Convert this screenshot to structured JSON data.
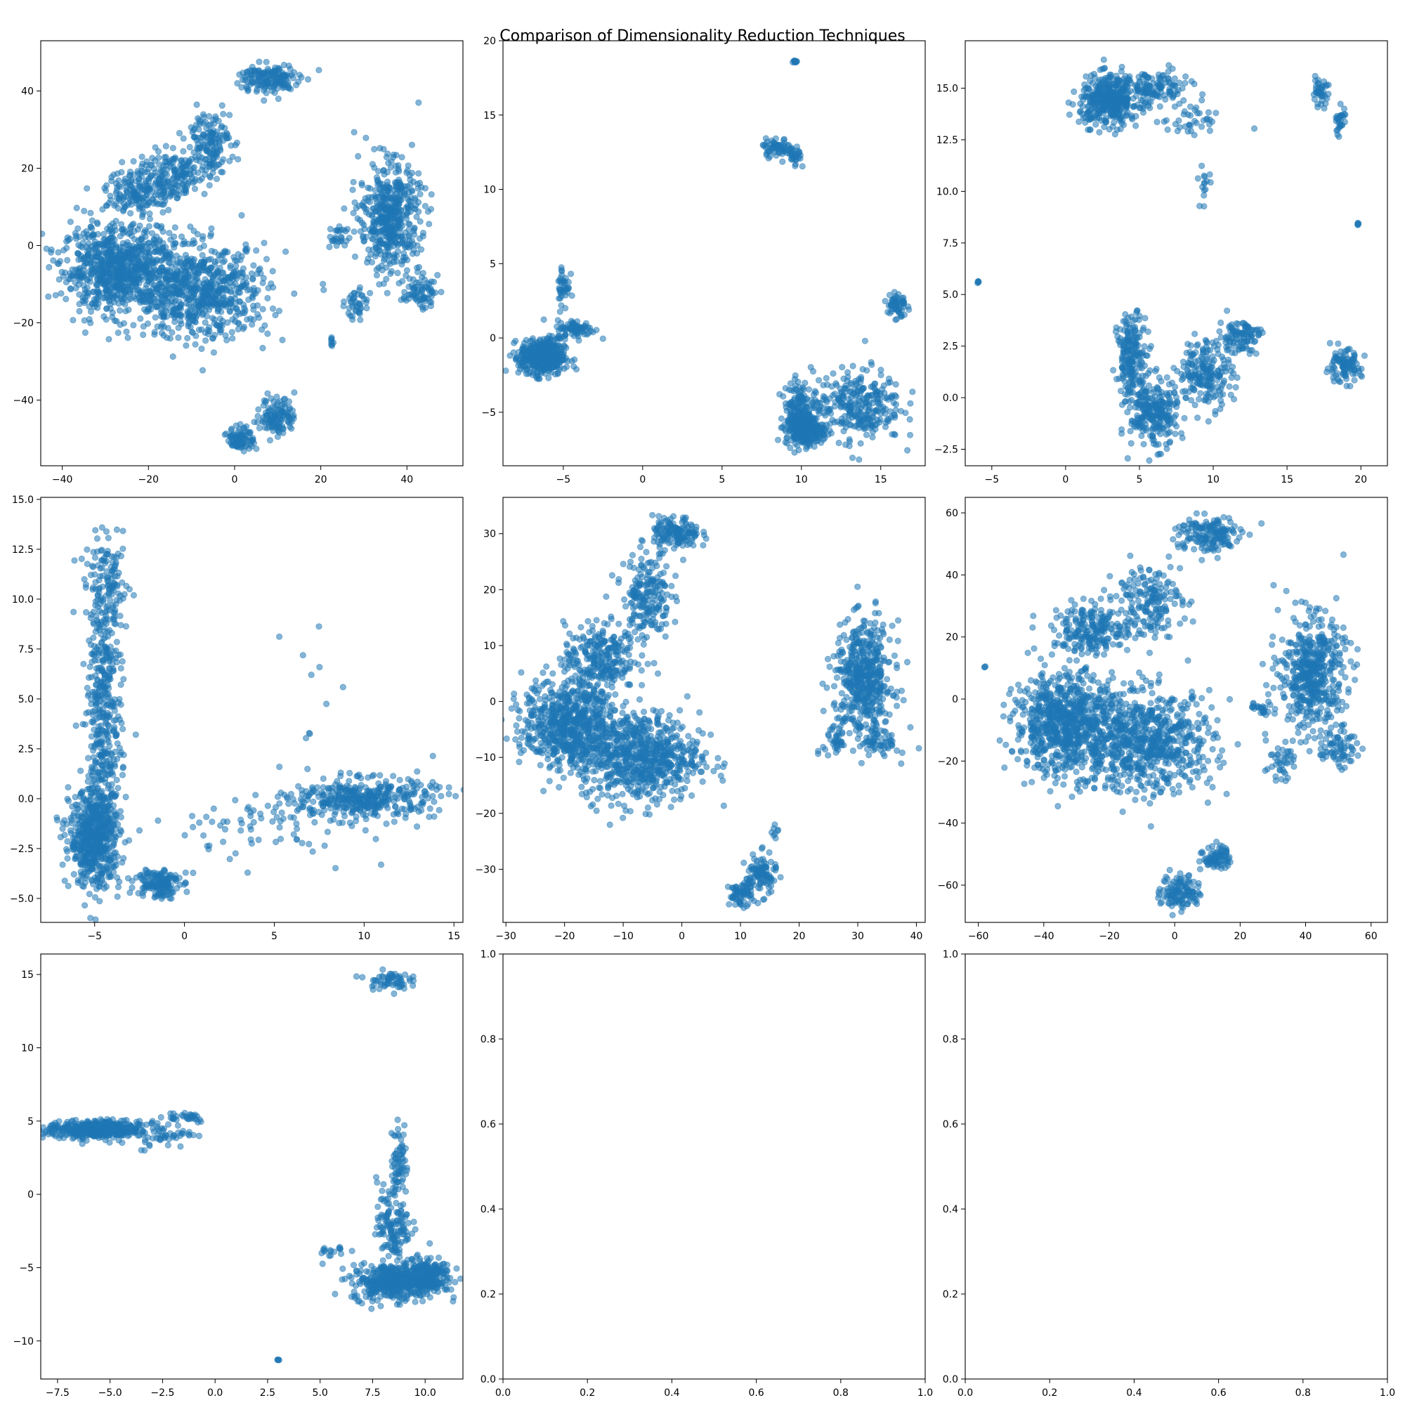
{
  "figure": {
    "suptitle": "Comparison of Dimensionality Reduction Techniques",
    "point_color": "#1f77b4",
    "point_alpha": 0.55
  },
  "chart_data": [
    {
      "type": "scatter",
      "title": "",
      "xlim": [
        -45,
        53
      ],
      "ylim": [
        -57,
        53
      ],
      "xticks": [
        -40,
        -20,
        0,
        20,
        40
      ],
      "yticks": [
        -40,
        -20,
        0,
        20,
        40
      ],
      "xticklabels": [
        "−40",
        "−20",
        "0",
        "20",
        "40"
      ],
      "yticklabels": [
        "−40",
        "−20",
        "0",
        "20",
        "40"
      ],
      "clusters": [
        {
          "cx": -27,
          "cy": -6,
          "sx": 6.5,
          "sy": 5.5,
          "n": 800
        },
        {
          "cx": -8,
          "cy": -12,
          "sx": 8,
          "sy": 6,
          "n": 700
        },
        {
          "cx": -22,
          "cy": 14,
          "sx": 4,
          "sy": 3,
          "n": 160
        },
        {
          "cx": -14,
          "cy": 18,
          "sx": 4,
          "sy": 3,
          "n": 160
        },
        {
          "cx": -6,
          "cy": 27,
          "sx": 2.5,
          "sy": 4,
          "n": 150
        },
        {
          "cx": 8,
          "cy": 43,
          "sx": 3.5,
          "sy": 2,
          "n": 160
        },
        {
          "cx": 36,
          "cy": 7,
          "sx": 3.5,
          "sy": 7,
          "n": 500
        },
        {
          "cx": 43,
          "cy": -12,
          "sx": 2,
          "sy": 2,
          "n": 70
        },
        {
          "cx": 28,
          "cy": -15,
          "sx": 1.2,
          "sy": 2,
          "n": 40
        },
        {
          "cx": 24,
          "cy": 2,
          "sx": 1,
          "sy": 2,
          "n": 25
        },
        {
          "cx": 10,
          "cy": -44,
          "sx": 2,
          "sy": 2.5,
          "n": 120
        },
        {
          "cx": 1.5,
          "cy": -50,
          "sx": 1.5,
          "sy": 1.5,
          "n": 90
        },
        {
          "cx": 22.5,
          "cy": -25,
          "sx": 0.3,
          "sy": 0.6,
          "n": 8
        }
      ]
    },
    {
      "type": "scatter",
      "title": "",
      "xlim": [
        -8.8,
        17.8
      ],
      "ylim": [
        -8.6,
        20
      ],
      "xticks": [
        -5,
        0,
        5,
        10,
        15
      ],
      "yticks": [
        -5,
        0,
        5,
        10,
        15,
        20
      ],
      "xticklabels": [
        "−5",
        "0",
        "5",
        "10",
        "15"
      ],
      "yticklabels": [
        "−5",
        "0",
        "5",
        "10",
        "15",
        "20"
      ],
      "clusters": [
        {
          "cx": -6.3,
          "cy": -1.3,
          "sx": 0.7,
          "sy": 0.6,
          "n": 500
        },
        {
          "cx": -4.2,
          "cy": 0.6,
          "sx": 0.6,
          "sy": 0.3,
          "n": 80
        },
        {
          "cx": -5,
          "cy": 3.5,
          "sx": 0.2,
          "sy": 0.8,
          "n": 40
        },
        {
          "cx": 10.2,
          "cy": -6.2,
          "sx": 0.6,
          "sy": 0.5,
          "n": 300
        },
        {
          "cx": 13.5,
          "cy": -4.5,
          "sx": 1.4,
          "sy": 1.2,
          "n": 300
        },
        {
          "cx": 9.8,
          "cy": -4.5,
          "sx": 0.4,
          "sy": 0.8,
          "n": 120
        },
        {
          "cx": 16,
          "cy": 2.2,
          "sx": 0.3,
          "sy": 0.5,
          "n": 60
        },
        {
          "cx": 8.5,
          "cy": 12.8,
          "sx": 0.5,
          "sy": 0.3,
          "n": 60
        },
        {
          "cx": 9.6,
          "cy": 12.1,
          "sx": 0.2,
          "sy": 0.4,
          "n": 30
        },
        {
          "cx": 9.6,
          "cy": 18.6,
          "sx": 0.05,
          "sy": 0.05,
          "n": 10
        }
      ]
    },
    {
      "type": "scatter",
      "title": "",
      "xlim": [
        -6.8,
        21.8
      ],
      "ylim": [
        -3.3,
        17.3
      ],
      "xticks": [
        -5,
        0,
        5,
        10,
        15,
        20
      ],
      "yticks": [
        -2.5,
        0.0,
        2.5,
        5.0,
        7.5,
        10.0,
        12.5,
        15.0
      ],
      "xticklabels": [
        "−5",
        "0",
        "5",
        "10",
        "15",
        "20"
      ],
      "yticklabels": [
        "−2.5",
        "0.0",
        "2.5",
        "5.0",
        "7.5",
        "10.0",
        "12.5",
        "15.0"
      ],
      "clusters": [
        {
          "cx": 3,
          "cy": 14.4,
          "sx": 1,
          "sy": 0.6,
          "n": 400
        },
        {
          "cx": 6,
          "cy": 15,
          "sx": 1.2,
          "sy": 0.4,
          "n": 120
        },
        {
          "cx": 8.5,
          "cy": 13.5,
          "sx": 1,
          "sy": 0.5,
          "n": 40
        },
        {
          "cx": 6,
          "cy": -0.8,
          "sx": 0.8,
          "sy": 0.8,
          "n": 250
        },
        {
          "cx": 4.5,
          "cy": 2,
          "sx": 0.5,
          "sy": 1,
          "n": 200
        },
        {
          "cx": 9.5,
          "cy": 1.2,
          "sx": 0.9,
          "sy": 0.8,
          "n": 200
        },
        {
          "cx": 11.8,
          "cy": 3,
          "sx": 0.7,
          "sy": 0.4,
          "n": 100
        },
        {
          "cx": 18.8,
          "cy": 1.5,
          "sx": 0.6,
          "sy": 0.4,
          "n": 100
        },
        {
          "cx": 17.2,
          "cy": 14.8,
          "sx": 0.3,
          "sy": 0.3,
          "n": 40
        },
        {
          "cx": 18.6,
          "cy": 13.4,
          "sx": 0.2,
          "sy": 0.4,
          "n": 30
        },
        {
          "cx": 9.4,
          "cy": 10.5,
          "sx": 0.2,
          "sy": 0.5,
          "n": 15
        },
        {
          "cx": 19.8,
          "cy": 8.4,
          "sx": 0.03,
          "sy": 0.03,
          "n": 5
        },
        {
          "cx": -5.9,
          "cy": 5.6,
          "sx": 0.03,
          "sy": 0.03,
          "n": 5
        }
      ]
    },
    {
      "type": "scatter",
      "title": "",
      "xlim": [
        -8,
        15.5
      ],
      "ylim": [
        -6.2,
        15.1
      ],
      "xticks": [
        -5,
        0,
        5,
        10,
        15
      ],
      "yticks": [
        -5.0,
        -2.5,
        0.0,
        2.5,
        5.0,
        7.5,
        10.0,
        12.5,
        15.0
      ],
      "xticklabels": [
        "−5",
        "0",
        "5",
        "10",
        "15"
      ],
      "yticklabels": [
        "−5.0",
        "−2.5",
        "0.0",
        "2.5",
        "5.0",
        "7.5",
        "10.0",
        "12.5",
        "15.0"
      ],
      "clusters": [
        {
          "cx": -5,
          "cy": -2,
          "sx": 0.7,
          "sy": 1.2,
          "n": 600
        },
        {
          "cx": -4.5,
          "cy": 3,
          "sx": 0.5,
          "sy": 2.5,
          "n": 300
        },
        {
          "cx": -4.3,
          "cy": 10.5,
          "sx": 0.6,
          "sy": 1.2,
          "n": 150
        },
        {
          "cx": -4.5,
          "cy": 7,
          "sx": 0.5,
          "sy": 1,
          "n": 80
        },
        {
          "cx": -1.5,
          "cy": -4.2,
          "sx": 0.6,
          "sy": 0.4,
          "n": 150
        },
        {
          "cx": 10,
          "cy": 0,
          "sx": 2,
          "sy": 0.5,
          "n": 400
        },
        {
          "cx": 4,
          "cy": -1.5,
          "sx": 3,
          "sy": 0.8,
          "n": 70
        },
        {
          "cx": 7,
          "cy": 6,
          "sx": 0.7,
          "sy": 2,
          "n": 10
        }
      ]
    },
    {
      "type": "scatter",
      "title": "",
      "xlim": [
        -30.5,
        41.5
      ],
      "ylim": [
        -39.5,
        36.5
      ],
      "xticks": [
        -30,
        -20,
        -10,
        0,
        10,
        20,
        30,
        40
      ],
      "yticks": [
        -30,
        -20,
        -10,
        0,
        10,
        20,
        30
      ],
      "xticklabels": [
        "−30",
        "−20",
        "−10",
        "0",
        "10",
        "20",
        "30",
        "40"
      ],
      "yticklabels": [
        "−30",
        "−20",
        "−10",
        "0",
        "10",
        "20",
        "30"
      ],
      "clusters": [
        {
          "cx": -19,
          "cy": -4,
          "sx": 4,
          "sy": 4,
          "n": 700
        },
        {
          "cx": -7,
          "cy": -10,
          "sx": 5,
          "sy": 4,
          "n": 700
        },
        {
          "cx": -14,
          "cy": 8,
          "sx": 3,
          "sy": 3,
          "n": 250
        },
        {
          "cx": -6,
          "cy": 19,
          "sx": 2,
          "sy": 4,
          "n": 200
        },
        {
          "cx": -1,
          "cy": 30,
          "sx": 2,
          "sy": 1.5,
          "n": 150
        },
        {
          "cx": 31,
          "cy": 4,
          "sx": 2.5,
          "sy": 5,
          "n": 500
        },
        {
          "cx": 34,
          "cy": -7,
          "sx": 1.5,
          "sy": 1.5,
          "n": 60
        },
        {
          "cx": 26,
          "cy": -7,
          "sx": 1,
          "sy": 2,
          "n": 35
        },
        {
          "cx": 13.5,
          "cy": -31,
          "sx": 1.3,
          "sy": 1.8,
          "n": 100
        },
        {
          "cx": 10,
          "cy": -34.5,
          "sx": 1,
          "sy": 1,
          "n": 70
        },
        {
          "cx": 16,
          "cy": -23.5,
          "sx": 0.3,
          "sy": 0.6,
          "n": 8
        }
      ]
    },
    {
      "type": "scatter",
      "title": "",
      "xlim": [
        -64,
        65
      ],
      "ylim": [
        -72,
        65
      ],
      "xticks": [
        -60,
        -40,
        -20,
        0,
        20,
        40,
        60
      ],
      "yticks": [
        -60,
        -40,
        -20,
        0,
        20,
        40,
        60
      ],
      "xticklabels": [
        "−60",
        "−40",
        "−20",
        "0",
        "20",
        "40",
        "60"
      ],
      "yticklabels": [
        "−60",
        "−40",
        "−20",
        "0",
        "20",
        "40",
        "60"
      ],
      "clusters": [
        {
          "cx": -33,
          "cy": -8,
          "sx": 8,
          "sy": 8,
          "n": 800
        },
        {
          "cx": -8,
          "cy": -14,
          "sx": 10,
          "sy": 8,
          "n": 700
        },
        {
          "cx": -25,
          "cy": 22,
          "sx": 6,
          "sy": 4,
          "n": 220
        },
        {
          "cx": -8,
          "cy": 32,
          "sx": 5,
          "sy": 6,
          "n": 180
        },
        {
          "cx": 10,
          "cy": 53,
          "sx": 5,
          "sy": 3,
          "n": 160
        },
        {
          "cx": 42,
          "cy": 8,
          "sx": 5,
          "sy": 9,
          "n": 500
        },
        {
          "cx": 50,
          "cy": -16,
          "sx": 3,
          "sy": 3,
          "n": 70
        },
        {
          "cx": 32,
          "cy": -20,
          "sx": 2,
          "sy": 3,
          "n": 40
        },
        {
          "cx": 2,
          "cy": -62,
          "sx": 3,
          "sy": 3,
          "n": 120
        },
        {
          "cx": 13,
          "cy": -51,
          "sx": 2,
          "sy": 2,
          "n": 80
        },
        {
          "cx": 27,
          "cy": -3,
          "sx": 2,
          "sy": 1,
          "n": 25
        },
        {
          "cx": -58,
          "cy": 10.5,
          "sx": 0.2,
          "sy": 0.2,
          "n": 3
        }
      ]
    },
    {
      "type": "scatter",
      "title": "",
      "xlim": [
        -8.3,
        11.8
      ],
      "ylim": [
        -12.6,
        16.4
      ],
      "xticks": [
        -7.5,
        -5.0,
        -2.5,
        0.0,
        2.5,
        5.0,
        7.5,
        10.0
      ],
      "yticks": [
        -10,
        -5,
        0,
        5,
        10,
        15
      ],
      "xticklabels": [
        "−7.5",
        "−5.0",
        "−2.5",
        "0.0",
        "2.5",
        "5.0",
        "7.5",
        "10.0"
      ],
      "yticklabels": [
        "−10",
        "−5",
        "0",
        "5",
        "10",
        "15"
      ],
      "clusters": [
        {
          "cx": -5.8,
          "cy": 4.4,
          "sx": 1.1,
          "sy": 0.3,
          "n": 400
        },
        {
          "cx": -3,
          "cy": 4.2,
          "sx": 1,
          "sy": 0.5,
          "n": 80
        },
        {
          "cx": -1.5,
          "cy": 5.3,
          "sx": 0.6,
          "sy": 0.2,
          "n": 30
        },
        {
          "cx": 8.5,
          "cy": -6,
          "sx": 1,
          "sy": 0.6,
          "n": 400
        },
        {
          "cx": 10,
          "cy": -5.5,
          "sx": 0.6,
          "sy": 0.6,
          "n": 200
        },
        {
          "cx": 8.5,
          "cy": -2,
          "sx": 0.4,
          "sy": 1.5,
          "n": 150
        },
        {
          "cx": 8.8,
          "cy": 2.5,
          "sx": 0.2,
          "sy": 1.2,
          "n": 60
        },
        {
          "cx": 8.2,
          "cy": 14.6,
          "sx": 0.5,
          "sy": 0.3,
          "n": 60
        },
        {
          "cx": 5.5,
          "cy": -3.8,
          "sx": 0.3,
          "sy": 0.2,
          "n": 15
        },
        {
          "cx": 3,
          "cy": -11.3,
          "sx": 0.03,
          "sy": 0.03,
          "n": 5
        }
      ]
    },
    {
      "type": "scatter",
      "title": "",
      "xlim": [
        0,
        1
      ],
      "ylim": [
        0,
        1
      ],
      "xticks": [
        0.0,
        0.2,
        0.4,
        0.6,
        0.8,
        1.0
      ],
      "yticks": [
        0.0,
        0.2,
        0.4,
        0.6,
        0.8,
        1.0
      ],
      "xticklabels": [
        "0.0",
        "0.2",
        "0.4",
        "0.6",
        "0.8",
        "1.0"
      ],
      "yticklabels": [
        "0.0",
        "0.2",
        "0.4",
        "0.6",
        "0.8",
        "1.0"
      ],
      "clusters": []
    },
    {
      "type": "scatter",
      "title": "",
      "xlim": [
        0,
        1
      ],
      "ylim": [
        0,
        1
      ],
      "xticks": [
        0.0,
        0.2,
        0.4,
        0.6,
        0.8,
        1.0
      ],
      "yticks": [
        0.0,
        0.2,
        0.4,
        0.6,
        0.8,
        1.0
      ],
      "xticklabels": [
        "0.0",
        "0.2",
        "0.4",
        "0.6",
        "0.8",
        "1.0"
      ],
      "yticklabels": [
        "0.0",
        "0.2",
        "0.4",
        "0.6",
        "0.8",
        "1.0"
      ],
      "clusters": []
    }
  ]
}
